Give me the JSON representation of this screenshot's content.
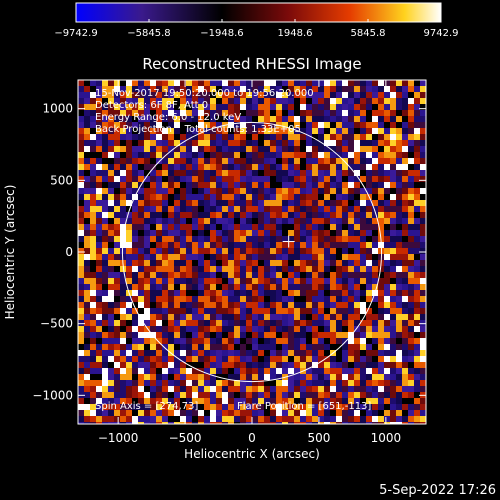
{
  "chart_data": {
    "type": "heatmap",
    "title": "Reconstructed RHESSI Image",
    "xlabel": "Heliocentric X (arcsec)",
    "ylabel": "Heliocentric Y (arcsec)",
    "xlim": [
      -1300,
      1300
    ],
    "ylim": [
      -1200,
      1200
    ],
    "xticks": [
      -1000,
      -500,
      0,
      500,
      1000
    ],
    "xtick_labels": [
      "−1000",
      "−500",
      "0",
      "500",
      "1000"
    ],
    "yticks": [
      -1000,
      -500,
      0,
      500,
      1000
    ],
    "ytick_labels": [
      "−1000",
      "−500",
      "0",
      "500",
      "1000"
    ],
    "colorbar": {
      "min": -9742.9,
      "max": 9742.9,
      "tick_values": [
        -9742.9,
        -5845.8,
        -1948.6,
        1948.6,
        5845.8,
        9742.9
      ],
      "tick_labels": [
        "−9742.9",
        "−5845.8",
        "−1948.6",
        "1948.6",
        "5845.8",
        "9742.9"
      ],
      "colors": [
        "#0000ff",
        "#3a1a8c",
        "#000000",
        "#7a0a0a",
        "#e53c00",
        "#ffd21e",
        "#ffffff"
      ]
    },
    "annotations": {
      "time_range": "15-Nov-2017 19:50:20.000 to 19:56:20.000",
      "detectors": "Detectors: 6F 8F, Att 0",
      "energy_range": "Energy Range: 6.0 - 12.0 keV",
      "method_counts": "Back Projection    Total counts: 1.33E+05",
      "spin_axis": "Spin Axis = [274,73]",
      "flare_position": "Flare Position = [651,-113]"
    },
    "solar_limb_radius_arcsec": 968,
    "marker_position": [
      274,
      73
    ],
    "grid": false
  },
  "footer": {
    "timestamp": "5-Sep-2022 17:26"
  }
}
